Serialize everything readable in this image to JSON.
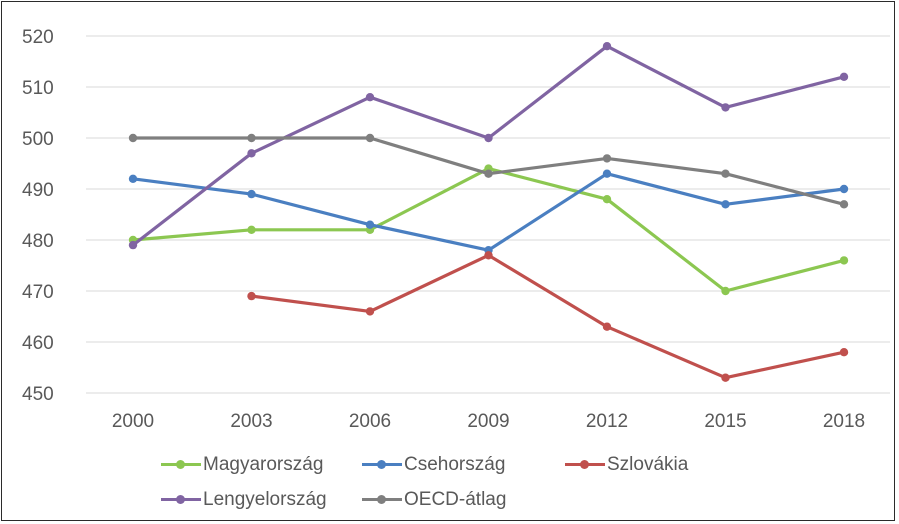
{
  "chart_data": {
    "type": "line",
    "title": "",
    "xlabel": "",
    "ylabel": "",
    "categories": [
      "2000",
      "2003",
      "2006",
      "2009",
      "2012",
      "2015",
      "2018"
    ],
    "ylim": [
      450,
      520
    ],
    "yticks": [
      "450",
      "460",
      "470",
      "480",
      "490",
      "500",
      "510",
      "520"
    ],
    "grid": true,
    "legend_position": "bottom",
    "series": [
      {
        "name": "Magyarország",
        "color": "#8cc751",
        "values": [
          480,
          482,
          482,
          494,
          488,
          470,
          476
        ]
      },
      {
        "name": "Csehország",
        "color": "#4a7fc1",
        "values": [
          492,
          489,
          483,
          478,
          493,
          487,
          490
        ]
      },
      {
        "name": "Szlovákia",
        "color": "#c0504d",
        "values": [
          null,
          469,
          466,
          477,
          463,
          453,
          458
        ]
      },
      {
        "name": "Lengyelország",
        "color": "#8064a2",
        "values": [
          479,
          497,
          508,
          500,
          518,
          506,
          512
        ]
      },
      {
        "name": "OECD-átlag",
        "color": "#7f7f7f",
        "values": [
          500,
          500,
          500,
          493,
          496,
          493,
          487
        ]
      }
    ]
  }
}
